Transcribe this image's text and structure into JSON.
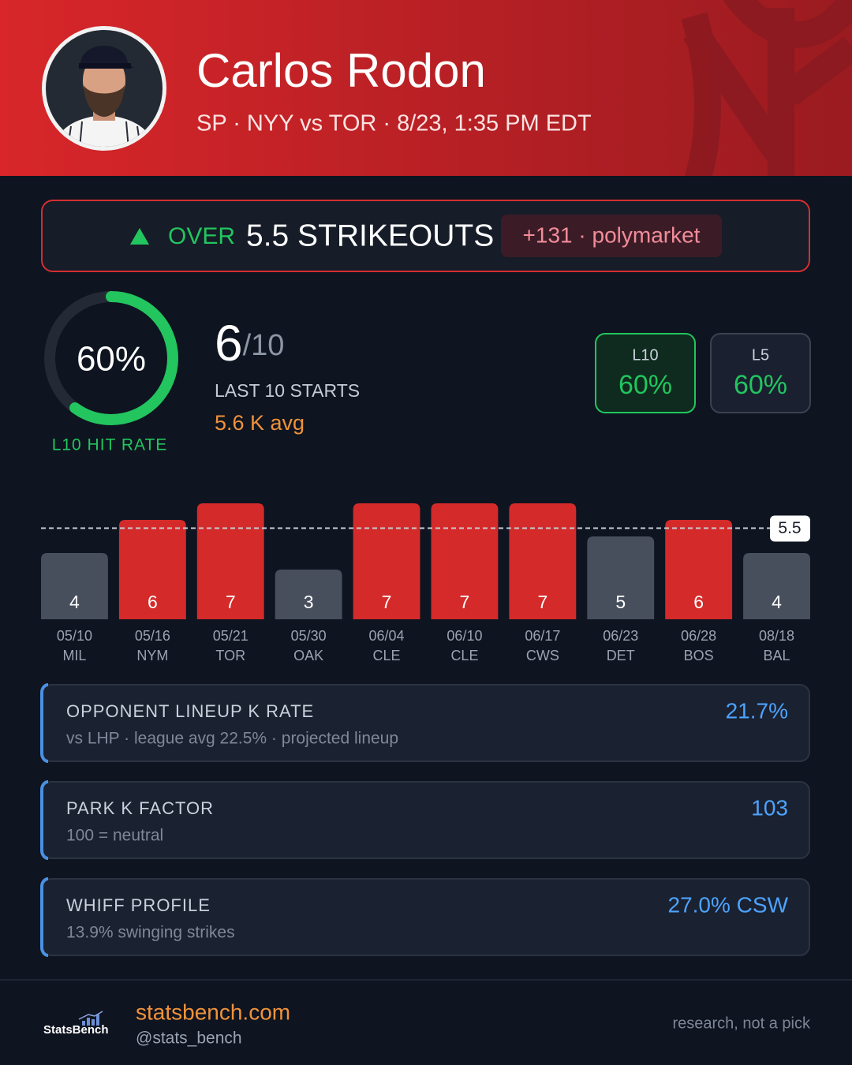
{
  "header": {
    "name": "Carlos Rodon",
    "subtitle": "SP · NYY vs TOR · 8/23, 1:35 PM EDT"
  },
  "prop": {
    "direction": "OVER",
    "line": "5.5 STRIKEOUTS",
    "odds": "+131 · polymarket"
  },
  "hit_rate": {
    "value": 60,
    "label": "60%",
    "caption": "L10 HIT RATE"
  },
  "record": {
    "hits": 6,
    "total": "/10",
    "caption": "LAST 10 STARTS",
    "average": "5.6 K avg"
  },
  "splits": [
    {
      "label": "L10",
      "value": "60%"
    },
    {
      "label": "L5",
      "value": "60%"
    }
  ],
  "chart_data": {
    "type": "bar",
    "categories": [
      "05/10",
      "05/16",
      "05/21",
      "05/30",
      "06/04",
      "06/10",
      "06/17",
      "06/23",
      "06/28",
      "08/18"
    ],
    "opponents": [
      "MIL",
      "NYM",
      "TOR",
      "OAK",
      "CLE",
      "CLE",
      "CWS",
      "DET",
      "BOS",
      "BAL"
    ],
    "values": [
      4,
      6,
      7,
      3,
      7,
      7,
      7,
      5,
      6,
      4
    ],
    "threshold": 5.5,
    "over_color": "#d42a2a",
    "under_color": "#474f5c",
    "ylim": [
      0,
      7
    ]
  },
  "factors": [
    {
      "title": "OPPONENT LINEUP K RATE",
      "detail": "vs LHP · league avg 22.5% · projected lineup",
      "value": "21.7%"
    },
    {
      "title": "PARK K FACTOR",
      "detail": "100 = neutral",
      "value": "103"
    },
    {
      "title": "WHIFF PROFILE",
      "detail": "13.9% swinging strikes",
      "value": "27.0% CSW"
    }
  ],
  "footer": {
    "logo": "StatsBench",
    "site": "statsbench.com",
    "handle": "@stats_bench",
    "disclaimer": "research, not a pick"
  }
}
